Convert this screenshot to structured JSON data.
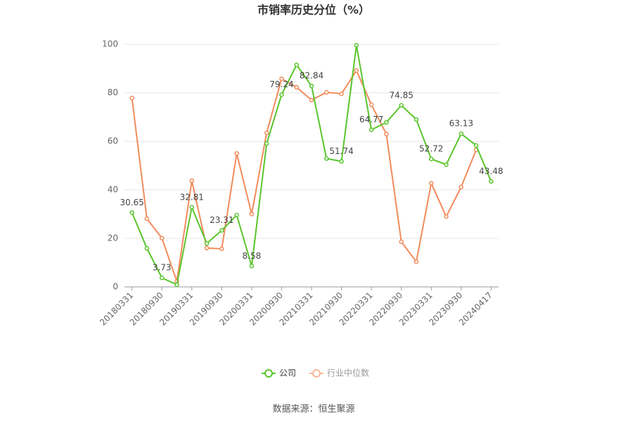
{
  "chart_data": {
    "type": "line",
    "title": "市销率历史分位（%）",
    "categories": [
      "20180331",
      null,
      "20180930",
      null,
      "20190331",
      null,
      "20190930",
      null,
      "20200331",
      null,
      "20200930",
      null,
      "20210331",
      null,
      "20210930",
      null,
      "20220331",
      null,
      "20220930",
      null,
      "20230331",
      null,
      "20230930",
      null,
      "20240417"
    ],
    "series": [
      {
        "name": "公司",
        "color": "#5ac52d",
        "values": [
          30.65,
          15.9,
          3.73,
          0.9,
          32.81,
          17.9,
          23.31,
          29.6,
          8.58,
          59.1,
          79.24,
          91.5,
          82.84,
          52.9,
          51.74,
          99.6,
          64.77,
          67.8,
          74.85,
          69.0,
          52.72,
          50.4,
          63.13,
          58.3,
          43.48
        ],
        "value_labels": [
          "30.65",
          null,
          "3.73",
          null,
          "32.81",
          null,
          "23.31",
          null,
          "8.58",
          null,
          "79.24",
          null,
          "82.84",
          null,
          "51.74",
          null,
          "64.77",
          null,
          "74.85",
          null,
          "52.72",
          null,
          "63.13",
          null,
          "43.48"
        ]
      },
      {
        "name": "行业中位数",
        "color": "#f28b5c",
        "values": [
          77.9,
          28.1,
          20.1,
          2.3,
          43.8,
          16.0,
          15.7,
          55.0,
          30.0,
          63.5,
          85.8,
          82.3,
          77.0,
          80.2,
          79.6,
          89.2,
          75.1,
          63.0,
          18.6,
          10.4,
          42.7,
          29.0,
          41.2,
          56.5,
          null
        ]
      }
    ],
    "ylim": [
      0,
      100
    ],
    "yticks": [
      0,
      20,
      40,
      60,
      80,
      100
    ],
    "grid": true,
    "legend": "bottom",
    "source": "数据来源：恒生聚源"
  }
}
